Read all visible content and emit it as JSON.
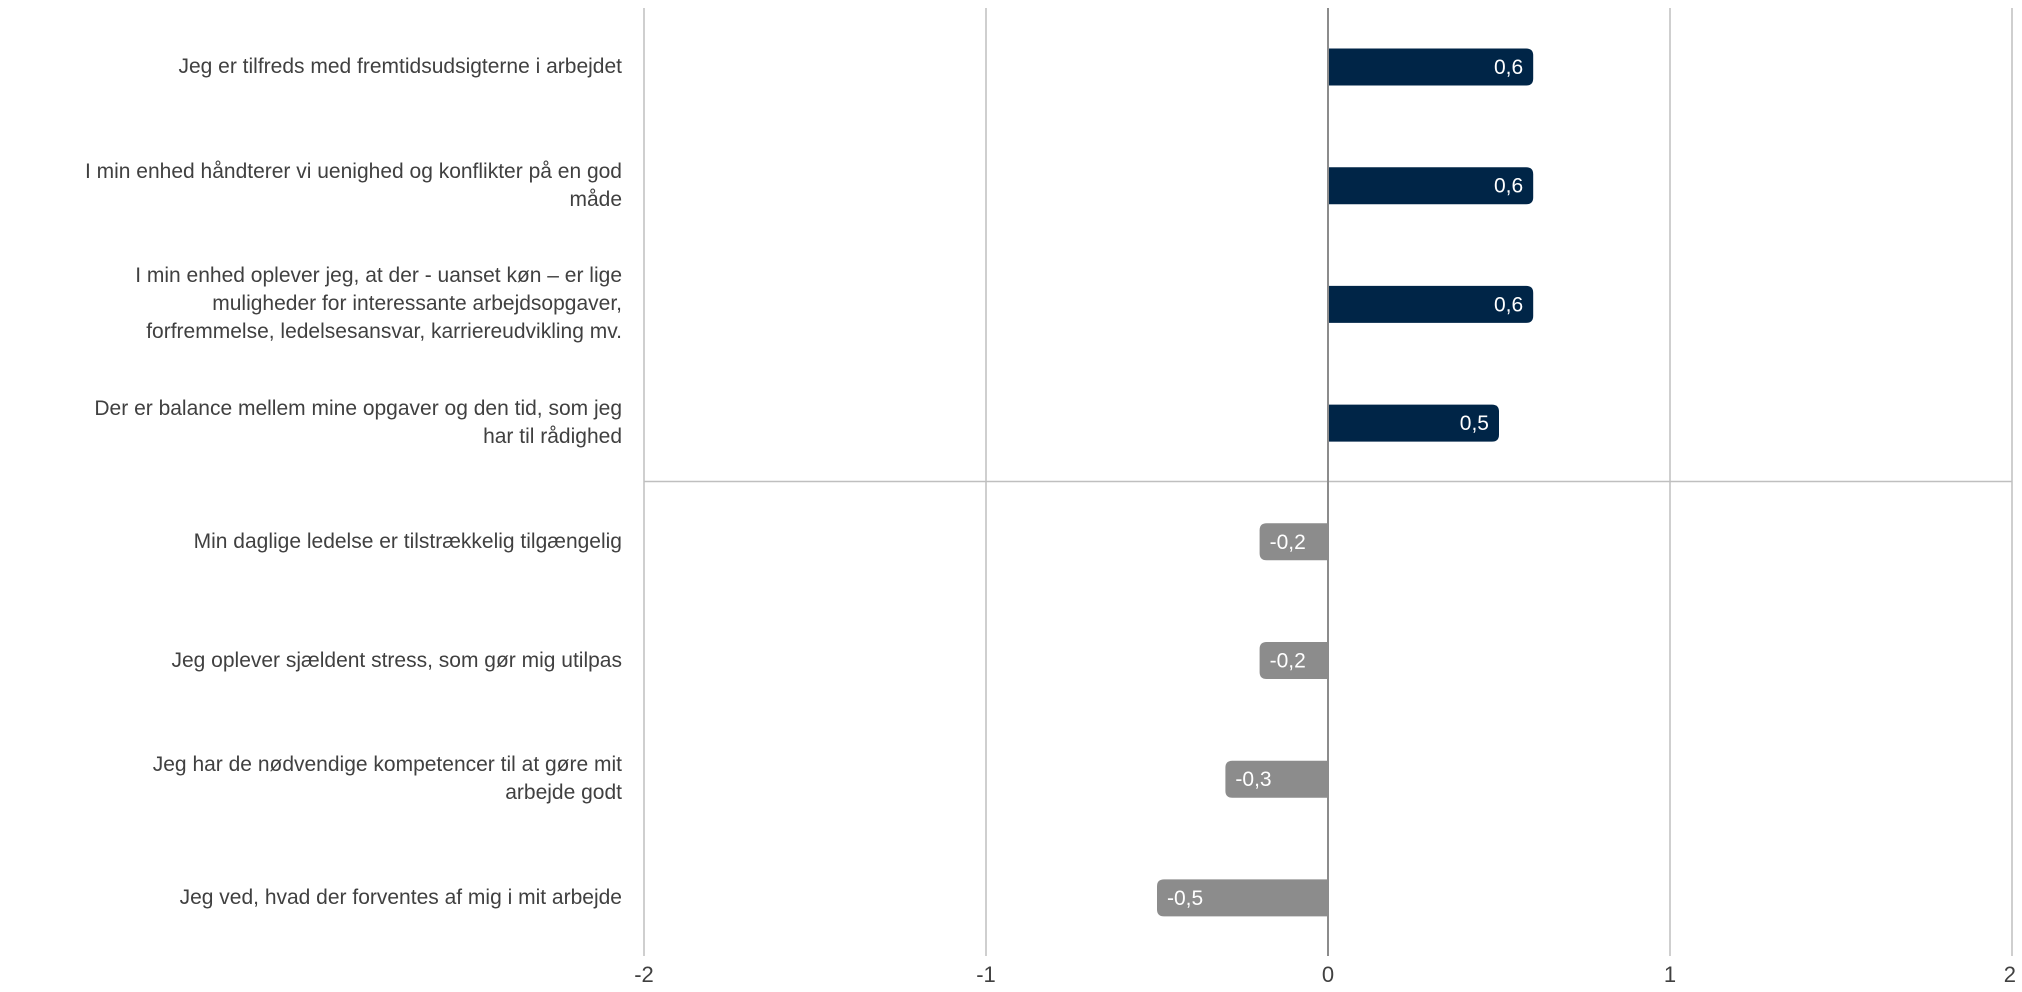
{
  "chart_data": {
    "type": "bar",
    "orientation": "horizontal",
    "categories": [
      "Jeg er tilfreds med fremtidsudsigterne i arbejdet",
      "I min enhed håndterer vi uenighed og konflikter på en god\nmåde",
      "I min enhed oplever jeg, at der - uanset køn – er lige\nmuligheder for interessante arbejdsopgaver,\nforfremmelse, ledelsesansvar, karriereudvikling mv.",
      "Der er balance mellem mine opgaver og den tid, som jeg\nhar til rådighed",
      "Min daglige ledelse er tilstrækkelig tilgængelig",
      "Jeg oplever sjældent stress, som gør mig utilpas",
      "Jeg har de nødvendige kompetencer til at gøre mit\narbejde godt",
      "Jeg ved, hvad der forventes af mig i mit arbejde"
    ],
    "values": [
      0.6,
      0.6,
      0.6,
      0.5,
      -0.2,
      -0.2,
      -0.3,
      -0.5
    ],
    "value_labels": [
      "0,6",
      "0,6",
      "0,6",
      "0,5",
      "-0,2",
      "-0,2",
      "-0,3",
      "-0,5"
    ],
    "xlim": [
      -2,
      2
    ],
    "x_ticks": [
      -2,
      -1,
      0,
      1,
      2
    ],
    "x_tick_labels": [
      "-2",
      "-1",
      "0",
      "1",
      "2"
    ],
    "grid": true,
    "separator_after_index": 3,
    "colors": {
      "positive": "#002547",
      "negative": "#8c8c8c",
      "grid": "#bfbfbf",
      "zero_line": "#8c8c8c",
      "separator": "#bfbfbf"
    },
    "title": "",
    "xlabel": "",
    "ylabel": ""
  }
}
